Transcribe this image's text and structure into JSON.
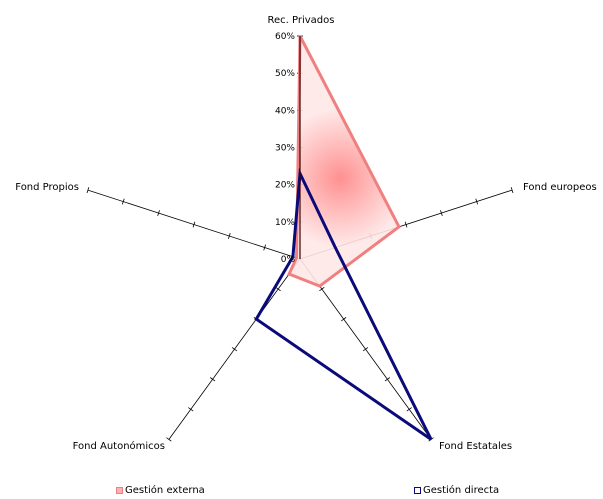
{
  "chart_data": {
    "type": "radar",
    "axes": [
      "Rec. Privados",
      "Fond europeos",
      "Fond Estatales",
      "Fond Autonómicos",
      "Fond Propios"
    ],
    "tick_labels": [
      "0%",
      "10%",
      "20%",
      "30%",
      "40%",
      "50%",
      "60%"
    ],
    "rlim": [
      0,
      60
    ],
    "series": [
      {
        "name": "Gestión externa",
        "values": [
          60,
          28,
          9,
          5,
          1
        ],
        "color": "#f08080",
        "fill": "#ffb0b0"
      },
      {
        "name": "Gestión directa",
        "values": [
          23,
          10,
          60,
          20,
          2
        ],
        "color": "#0a0a7a",
        "fill": "none"
      }
    ],
    "legend_position": "bottom"
  }
}
